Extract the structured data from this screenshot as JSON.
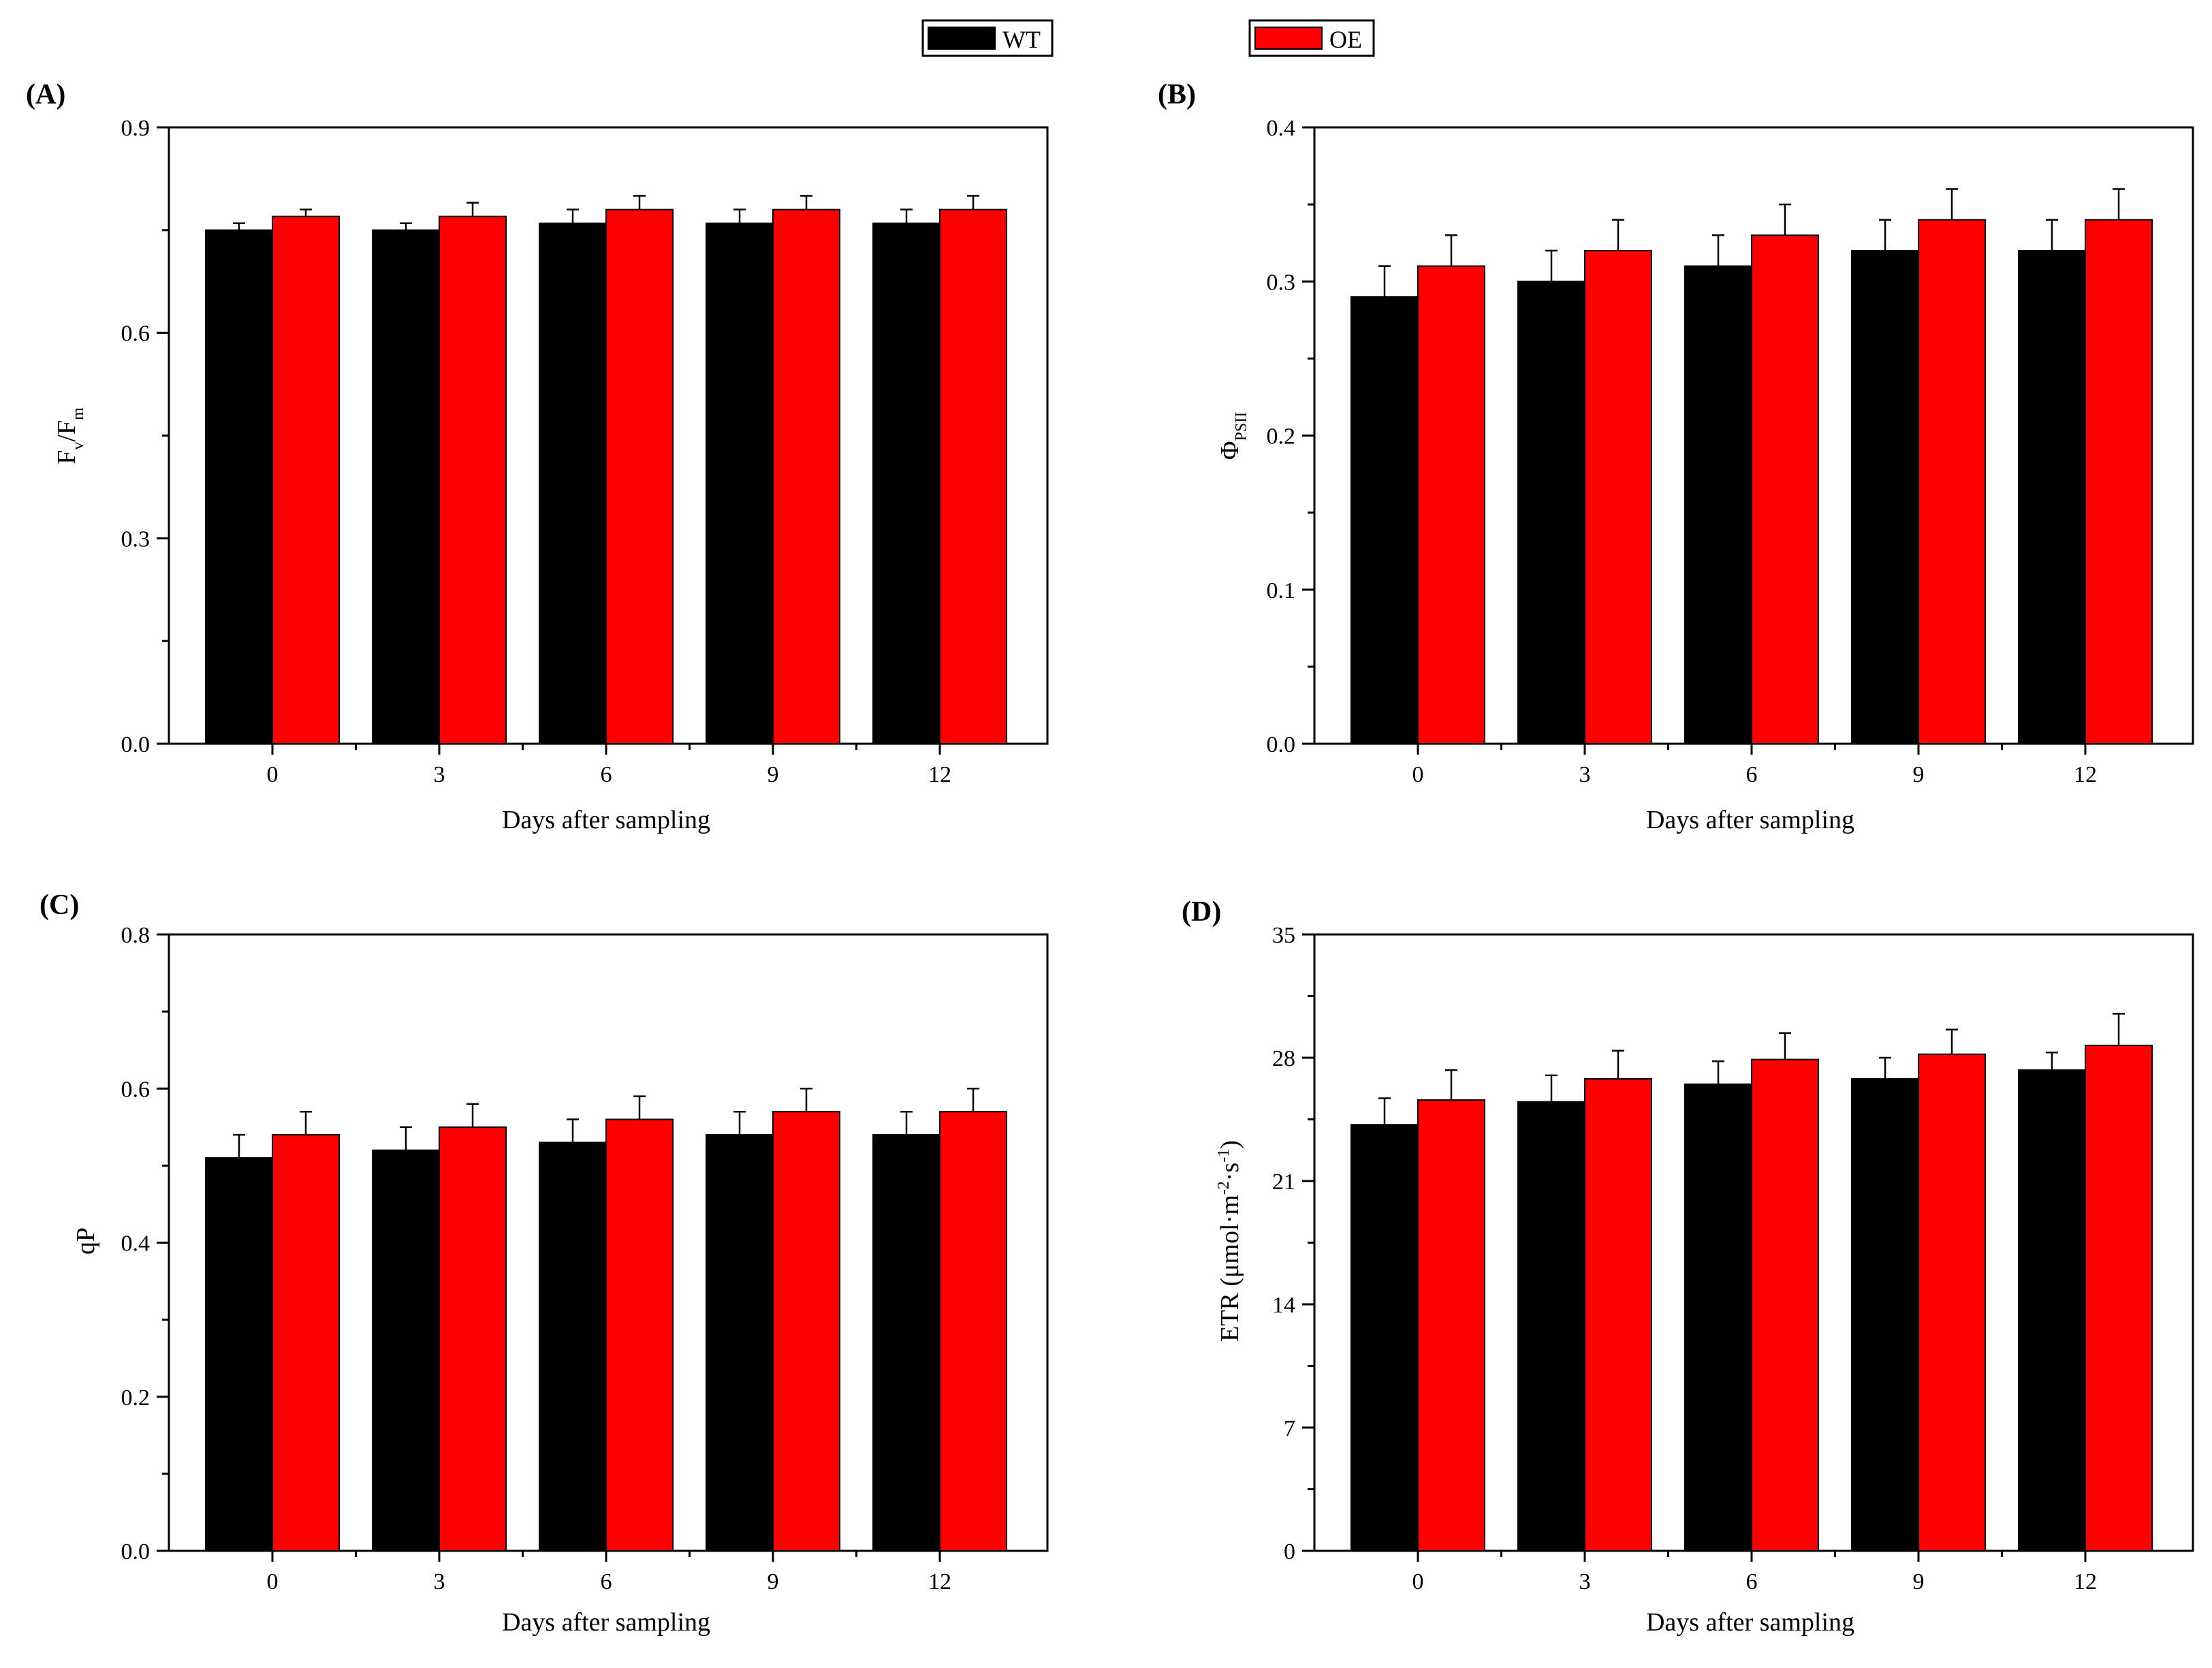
{
  "legend": {
    "items": [
      {
        "label": "WT",
        "color": "#000000"
      },
      {
        "label": "OE",
        "color": "#ff0000"
      }
    ]
  },
  "chart_data": [
    {
      "type": "bar",
      "panel_label": "(A)",
      "title": "",
      "xlabel": "Days after sampling",
      "ylabel": {
        "main": "F",
        "sub1": "v",
        "mid": "/F",
        "sub2": "m"
      },
      "categories": [
        "0",
        "3",
        "6",
        "9",
        "12"
      ],
      "ylim": [
        0,
        0.9
      ],
      "yticks": [
        0,
        0.3,
        0.6,
        0.9
      ],
      "ytick_labels": [
        "0.0",
        "0.3",
        "0.6",
        "0.9"
      ],
      "series": [
        {
          "name": "WT",
          "values": [
            0.75,
            0.75,
            0.76,
            0.76,
            0.76
          ],
          "errors": [
            0.01,
            0.01,
            0.02,
            0.02,
            0.02
          ]
        },
        {
          "name": "OE",
          "values": [
            0.77,
            0.77,
            0.78,
            0.78,
            0.78
          ],
          "errors": [
            0.01,
            0.02,
            0.02,
            0.02,
            0.02
          ]
        }
      ]
    },
    {
      "type": "bar",
      "panel_label": "(B)",
      "title": "",
      "xlabel": "Days after sampling",
      "ylabel": {
        "main": "Φ",
        "sub1": "PSII"
      },
      "categories": [
        "0",
        "3",
        "6",
        "9",
        "12"
      ],
      "ylim": [
        0,
        0.4
      ],
      "yticks": [
        0,
        0.1,
        0.2,
        0.3,
        0.4
      ],
      "ytick_labels": [
        "0.0",
        "0.1",
        "0.2",
        "0.3",
        "0.4"
      ],
      "series": [
        {
          "name": "WT",
          "values": [
            0.29,
            0.3,
            0.31,
            0.32,
            0.32
          ],
          "errors": [
            0.02,
            0.02,
            0.02,
            0.02,
            0.02
          ]
        },
        {
          "name": "OE",
          "values": [
            0.31,
            0.32,
            0.33,
            0.34,
            0.34
          ],
          "errors": [
            0.02,
            0.02,
            0.02,
            0.02,
            0.02
          ]
        }
      ]
    },
    {
      "type": "bar",
      "panel_label": "(C)",
      "title": "",
      "xlabel": "Days after sampling",
      "ylabel": {
        "main": "qP"
      },
      "categories": [
        "0",
        "3",
        "6",
        "9",
        "12"
      ],
      "ylim": [
        0,
        0.8
      ],
      "yticks": [
        0,
        0.2,
        0.4,
        0.6,
        0.8
      ],
      "ytick_labels": [
        "0.0",
        "0.2",
        "0.4",
        "0.6",
        "0.8"
      ],
      "series": [
        {
          "name": "WT",
          "values": [
            0.51,
            0.52,
            0.53,
            0.54,
            0.54
          ],
          "errors": [
            0.03,
            0.03,
            0.03,
            0.03,
            0.03
          ]
        },
        {
          "name": "OE",
          "values": [
            0.54,
            0.55,
            0.56,
            0.57,
            0.57
          ],
          "errors": [
            0.03,
            0.03,
            0.03,
            0.03,
            0.03
          ]
        }
      ]
    },
    {
      "type": "bar",
      "panel_label": "(D)",
      "title": "",
      "xlabel": "Days after sampling",
      "ylabel": {
        "main": "ETR (μmol·m",
        "sup1": "-2",
        "mid": "·s",
        "sup2": "-1",
        "end": ")"
      },
      "categories": [
        "0",
        "3",
        "6",
        "9",
        "12"
      ],
      "ylim": [
        0,
        35
      ],
      "yticks": [
        0,
        7,
        14,
        21,
        28,
        35
      ],
      "ytick_labels": [
        "0",
        "7",
        "14",
        "21",
        "28",
        "35"
      ],
      "series": [
        {
          "name": "WT",
          "values": [
            24.2,
            25.5,
            26.5,
            26.8,
            27.3
          ],
          "errors": [
            1.5,
            1.5,
            1.3,
            1.2,
            1.0
          ]
        },
        {
          "name": "OE",
          "values": [
            25.6,
            26.8,
            27.9,
            28.2,
            28.7
          ],
          "errors": [
            1.7,
            1.6,
            1.5,
            1.4,
            1.8
          ]
        }
      ]
    }
  ]
}
